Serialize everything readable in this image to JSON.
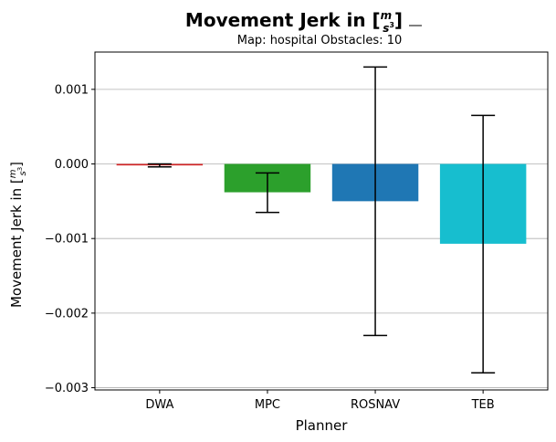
{
  "chart_data": {
    "type": "bar",
    "title": {
      "main": "Movement Jerk in [",
      "frac_num": "m",
      "frac_den_base": "s",
      "frac_den_exp": "3",
      "close": "]"
    },
    "subtitle": "Map: hospital Obstacles: 10",
    "xlabel": "Planner",
    "ylabel": {
      "main": "Movement Jerk in [",
      "frac_num": "m",
      "frac_den_base": "s",
      "frac_den_exp": "3",
      "close": "]"
    },
    "categories": [
      "DWA",
      "MPC",
      "ROSNAV",
      "TEB"
    ],
    "values": [
      -2e-05,
      -0.00038,
      -0.0005,
      -0.00107
    ],
    "error_low": [
      -4e-05,
      -0.00065,
      -0.0023,
      -0.0028
    ],
    "error_high": [
      0.0,
      -0.00012,
      0.0013,
      0.00065
    ],
    "colors": [
      "#d62728",
      "#2ca02c",
      "#1f77b4",
      "#17becf"
    ],
    "ylim": [
      -0.00303,
      0.0015
    ],
    "yticks": [
      0.001,
      0.0,
      -0.001,
      -0.002,
      -0.003
    ],
    "ytick_labels": [
      "0.001",
      "0.000",
      "−0.001",
      "−0.002",
      "−0.003"
    ],
    "grid": "horizontal"
  }
}
